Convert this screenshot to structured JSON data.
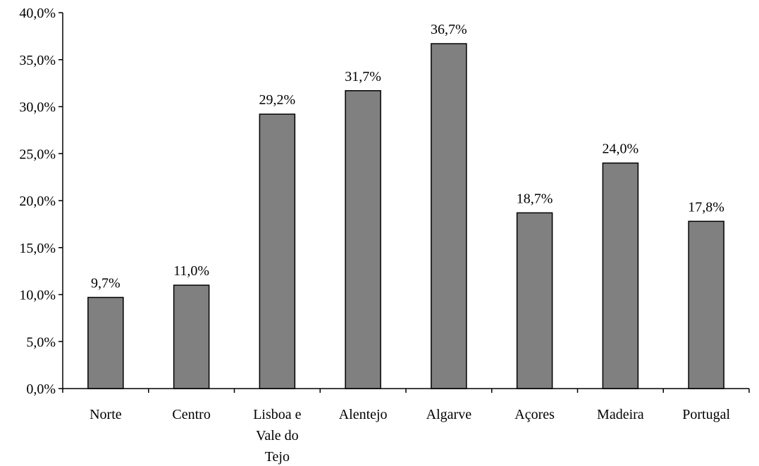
{
  "chart_data": {
    "type": "bar",
    "title": "",
    "xlabel": "",
    "ylabel": "",
    "ylim": [
      0,
      40
    ],
    "y_ticks": [
      "0,0%",
      "5,0%",
      "10,0%",
      "15,0%",
      "20,0%",
      "25,0%",
      "30,0%",
      "35,0%",
      "40,0%"
    ],
    "grid": false,
    "legend": "none",
    "bar_color": "#808080",
    "bar_edge_color": "#000000",
    "categories": [
      [
        "Norte"
      ],
      [
        "Centro"
      ],
      [
        "Lisboa e",
        "Vale do",
        "Tejo"
      ],
      [
        "Alentejo"
      ],
      [
        "Algarve"
      ],
      [
        "Açores"
      ],
      [
        "Madeira"
      ],
      [
        "Portugal"
      ]
    ],
    "values": [
      9.7,
      11.0,
      29.2,
      31.7,
      36.7,
      18.7,
      24.0,
      17.8
    ],
    "value_labels": [
      "9,7%",
      "11,0%",
      "29,2%",
      "31,7%",
      "36,7%",
      "18,7%",
      "24,0%",
      "17,8%"
    ]
  }
}
